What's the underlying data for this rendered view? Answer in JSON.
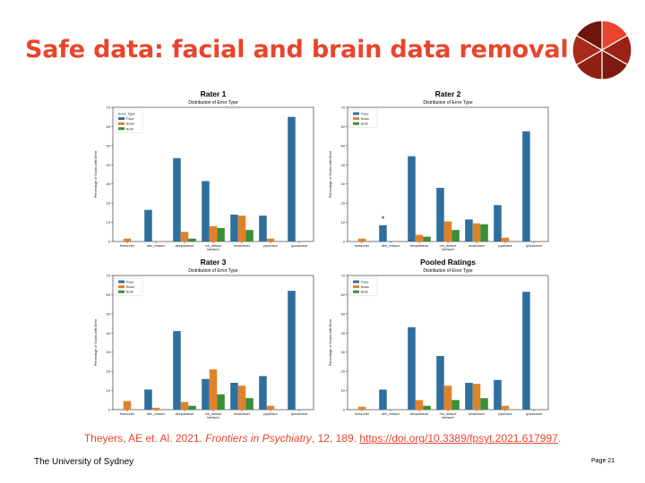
{
  "slide": {
    "title": "Safe data: facial and brain data removal",
    "citation": {
      "authors": "Theyers, AE et. Al. 2021. ",
      "journal": "Frontiers in Psychiatry",
      "volume": ", 12, ",
      "pages": "189. ",
      "doi": "https://doi.org/10.3389/fpsyt.2021.617997",
      "end": "."
    },
    "footer_left": "The University of Sydney",
    "page_label": "Page 21"
  },
  "colors": {
    "accent": "#e8452c",
    "face": "#2e6f9e",
    "brain": "#e1822b",
    "both": "#3a8e3a",
    "logo": [
      "#e8452c",
      "#9a2216",
      "#7d1a10",
      "#8e2014",
      "#a72a1b",
      "#6e160c"
    ]
  },
  "chart_data": [
    {
      "type": "bar",
      "title": "Rater 1",
      "subtitle": "Distribution of Error Type",
      "ylabel": "Percentage of Scans with Error",
      "xlabel": "",
      "ylim": [
        0,
        70
      ],
      "yticks": [
        0,
        10,
        20,
        30,
        40,
        50,
        60,
        70
      ],
      "legend": {
        "title": "Error_Type",
        "position": "top-left"
      },
      "categories": [
        "freesurfer",
        "afni_refacer",
        "deepdefacer",
        "mri_deface",
        "mridefacer",
        "pydeface",
        "quickshear"
      ],
      "category_sublabels": [
        "",
        "",
        "",
        "(deface)",
        "",
        "",
        ""
      ],
      "series": [
        {
          "name": "Face",
          "values": [
            0,
            16.5,
            43.5,
            31.5,
            14,
            13.5,
            65
          ]
        },
        {
          "name": "Brain",
          "values": [
            1.5,
            0,
            5,
            8,
            13.5,
            1.5,
            0
          ]
        },
        {
          "name": "Both",
          "values": [
            0,
            0,
            1.5,
            7,
            6,
            0,
            0
          ]
        }
      ]
    },
    {
      "type": "bar",
      "title": "Rater 2",
      "subtitle": "Distribution of Error Type",
      "ylabel": "Percentage of Scans with Error",
      "xlabel": "",
      "ylim": [
        0,
        70
      ],
      "yticks": [
        0,
        10,
        20,
        30,
        40,
        50,
        60,
        70
      ],
      "legend": {
        "title": "",
        "position": "top-left"
      },
      "categories": [
        "freesurfer",
        "afni_refacer",
        "deepdefacer",
        "mri_deface",
        "mridefacer",
        "pydeface",
        "quickshear"
      ],
      "category_sublabels": [
        "",
        "",
        "",
        "(deface)",
        "",
        "",
        ""
      ],
      "annotations": [
        {
          "text": "*",
          "category": "afni_refacer"
        }
      ],
      "series": [
        {
          "name": "Face",
          "values": [
            0,
            8.5,
            44.5,
            28,
            11.5,
            19,
            57.5
          ]
        },
        {
          "name": "Brain",
          "values": [
            1.5,
            0,
            3.5,
            10.5,
            9.5,
            2,
            0
          ]
        },
        {
          "name": "Both",
          "values": [
            0,
            0,
            2.5,
            6,
            9,
            0,
            0
          ]
        }
      ]
    },
    {
      "type": "bar",
      "title": "Rater 3",
      "subtitle": "Distribution of Error Type",
      "ylabel": "Percentage of Scans with Error",
      "xlabel": "",
      "ylim": [
        0,
        70
      ],
      "yticks": [
        0,
        10,
        20,
        30,
        40,
        50,
        60,
        70
      ],
      "legend": {
        "title": "",
        "position": "top-left"
      },
      "categories": [
        "freesurfer",
        "afni_refacer",
        "deepdefacer",
        "mri_deface",
        "mridefacer",
        "pydeface",
        "quickshear"
      ],
      "category_sublabels": [
        "",
        "",
        "",
        "(deface)",
        "",
        "",
        ""
      ],
      "series": [
        {
          "name": "Face",
          "values": [
            0,
            10.5,
            41,
            16,
            14,
            17.5,
            62
          ]
        },
        {
          "name": "Brain",
          "values": [
            4.5,
            1,
            4,
            21,
            12.5,
            2,
            0
          ]
        },
        {
          "name": "Both",
          "values": [
            0,
            0,
            2,
            8,
            6,
            0,
            0
          ]
        }
      ]
    },
    {
      "type": "bar",
      "title": "Pooled Ratings",
      "subtitle": "Distribution of Error Type",
      "ylabel": "Percentage of Scans with Error",
      "xlabel": "",
      "ylim": [
        0,
        70
      ],
      "yticks": [
        0,
        10,
        20,
        30,
        40,
        50,
        60,
        70
      ],
      "legend": {
        "title": "",
        "position": "top-left"
      },
      "categories": [
        "freesurfer",
        "afni_refacer",
        "deepdefacer",
        "mri_deface",
        "mridefacer",
        "pydeface",
        "quickshear"
      ],
      "category_sublabels": [
        "",
        "",
        "",
        "(deface)",
        "",
        "",
        ""
      ],
      "series": [
        {
          "name": "Face",
          "values": [
            0,
            10.5,
            43,
            28,
            14,
            15.5,
            61.5
          ]
        },
        {
          "name": "Brain",
          "values": [
            1.5,
            0,
            5,
            12.5,
            13.5,
            2,
            0
          ]
        },
        {
          "name": "Both",
          "values": [
            0,
            0,
            2,
            5,
            6,
            0,
            0
          ]
        }
      ]
    }
  ]
}
